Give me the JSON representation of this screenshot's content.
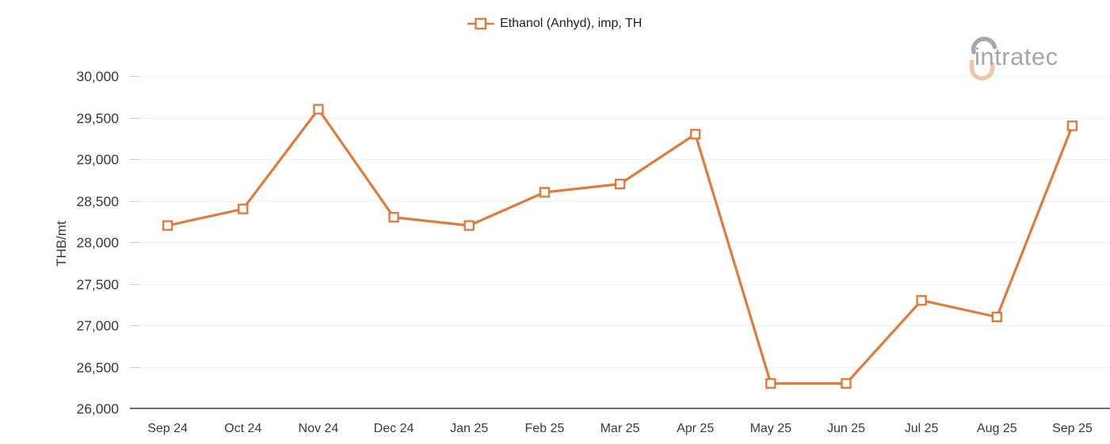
{
  "legend": {
    "label": "Ethanol (Anhyd), imp, TH"
  },
  "logo": {
    "text": "intratec"
  },
  "colors": {
    "series": "#E07B3C",
    "marker_fill": "#ffffff",
    "grid": "#f1f1f1",
    "tick": "#cfcfcf",
    "axis": "#6b6b6b",
    "text": "#3a3a3a",
    "legend_text": "#212121",
    "logo_gray": "#a7a7a7",
    "logo_peach": "#ecc9a2"
  },
  "chart_data": {
    "type": "line",
    "title": "",
    "categories": [
      "Sep 24",
      "Oct 24",
      "Nov 24",
      "Dec 24",
      "Jan 25",
      "Feb 25",
      "Mar 25",
      "Apr 25",
      "May 25",
      "Jun 25",
      "Jul 25",
      "Aug 25",
      "Sep 25"
    ],
    "series": [
      {
        "name": "Ethanol (Anhyd), imp, TH",
        "marker": "open-square",
        "color": "#E07B3C",
        "values": [
          28200,
          28400,
          29600,
          28300,
          28200,
          28600,
          28700,
          29300,
          26300,
          26300,
          27300,
          27100,
          29400
        ]
      }
    ],
    "xlabel": "",
    "ylabel": "THB/mt",
    "ylim": [
      26000,
      30000
    ],
    "yticks": [
      26000,
      26500,
      27000,
      27500,
      28000,
      28500,
      29000,
      29500,
      30000
    ],
    "grid": "horizontal",
    "legend_position": "top-center"
  }
}
